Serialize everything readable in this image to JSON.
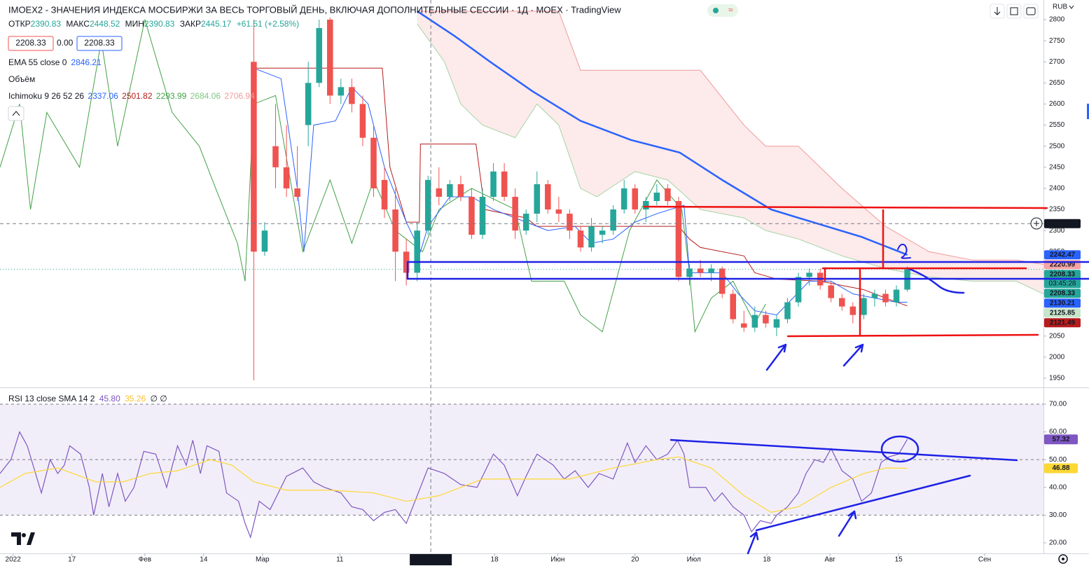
{
  "currency": "RUB",
  "legend": {
    "title": "IMOEX2 - ЗНАЧЕНИЯ ИНДЕКСА МОСБИРЖИ ЗА ВЕСЬ ТОРГОВЫЙ ДЕНЬ, ВКЛЮЧАЯ ДОПОЛНИТЕЛЬНЫЕ СЕССИИ · 1Д · MOEX · TradingView",
    "ohlc": [
      {
        "name": "ОТКР",
        "value": "2390.83"
      },
      {
        "name": "МАКС",
        "value": "2448.52"
      },
      {
        "name": "МИН",
        "value": "2390.83"
      },
      {
        "name": "ЗАКР",
        "value": "2445.17"
      }
    ],
    "change": "+61.51 (+2.58%)",
    "inputs": [
      "2208.33",
      "0.00",
      "2208.33"
    ],
    "ema": {
      "name": "EMA 55 close 0",
      "value": "2846.21"
    },
    "volume": "Объём",
    "ichimoku": {
      "name": "Ichimoku 9 26 52 26",
      "values": [
        "2337.06",
        "2501.82",
        "2293.99",
        "2684.06",
        "2706.94"
      ]
    },
    "rsi": {
      "name": "RSI 13 close SMA 14 2",
      "values": [
        "45.80",
        "35.26",
        "∅ ∅"
      ]
    }
  },
  "chart_data": [
    {
      "type": "candlestick",
      "up_color": "#26a69a",
      "down_color": "#ef5350",
      "xlim": [
        -23.3,
        72.5
      ],
      "ylim": [
        1930,
        2846.5
      ],
      "yticks": [
        1950,
        2000,
        2050,
        2100,
        2150,
        2200,
        2250,
        2300,
        2350,
        2400,
        2450,
        2500,
        2550,
        2600,
        2650,
        2700,
        2750,
        2800
      ],
      "xticks": [
        {
          "value": -22.1,
          "label": "2022"
        },
        {
          "value": -16.7,
          "label": "17"
        },
        {
          "value": -10,
          "label": "Фев"
        },
        {
          "value": -4.6,
          "label": "14"
        },
        {
          "value": 0.8,
          "label": "Мар"
        },
        {
          "value": 7.9,
          "label": "11"
        },
        {
          "value": 16.25,
          "label": "29 Апр '22"
        },
        {
          "value": 22.1,
          "label": "18"
        },
        {
          "value": 27.9,
          "label": "Июн"
        },
        {
          "value": 35,
          "label": "20"
        },
        {
          "value": 40.4,
          "label": "Июл"
        },
        {
          "value": 47.1,
          "label": "18"
        },
        {
          "value": 52.9,
          "label": "Авг"
        },
        {
          "value": 59.2,
          "label": "15"
        },
        {
          "value": 67.1,
          "label": "Сен"
        }
      ],
      "grid": false,
      "crosshair": {
        "x": 16.25,
        "y": 2316.36
      },
      "ohlc": [
        [
          2700,
          2800,
          1945,
          2250
        ],
        [
          2250,
          2320,
          2240,
          2300
        ],
        [
          2500,
          2600,
          2400,
          2450
        ],
        [
          2450,
          2550,
          2380,
          2400
        ],
        [
          2400,
          2500,
          2370,
          2380
        ],
        [
          2550,
          2700,
          2500,
          2650
        ],
        [
          2650,
          2800,
          2640,
          2780
        ],
        [
          2800,
          2805,
          2600,
          2620
        ],
        [
          2620,
          2660,
          2600,
          2640
        ],
        [
          2640,
          2660,
          2580,
          2600
        ],
        [
          2600,
          2620,
          2500,
          2520
        ],
        [
          2520,
          2550,
          2380,
          2400
        ],
        [
          2420,
          2450,
          2330,
          2350
        ],
        [
          2350,
          2400,
          2180,
          2250
        ],
        [
          2250,
          2280,
          2170,
          2200
        ],
        [
          2200,
          2320,
          2180,
          2300
        ],
        [
          2300,
          2430,
          2290,
          2420
        ],
        [
          2400,
          2450,
          2360,
          2380
        ],
        [
          2380,
          2420,
          2370,
          2410
        ],
        [
          2410,
          2430,
          2370,
          2380
        ],
        [
          2380,
          2400,
          2280,
          2290
        ],
        [
          2290,
          2400,
          2280,
          2380
        ],
        [
          2380,
          2460,
          2370,
          2440
        ],
        [
          2440,
          2460,
          2370,
          2380
        ],
        [
          2380,
          2400,
          2280,
          2300
        ],
        [
          2300,
          2350,
          2290,
          2340
        ],
        [
          2340,
          2440,
          2320,
          2410
        ],
        [
          2410,
          2420,
          2340,
          2350
        ],
        [
          2350,
          2380,
          2320,
          2340
        ],
        [
          2340,
          2350,
          2280,
          2300
        ],
        [
          2300,
          2310,
          2250,
          2260
        ],
        [
          2260,
          2330,
          2250,
          2310
        ],
        [
          2290,
          2310,
          2270,
          2300
        ],
        [
          2300,
          2360,
          2290,
          2350
        ],
        [
          2350,
          2420,
          2340,
          2400
        ],
        [
          2400,
          2410,
          2340,
          2350
        ],
        [
          2350,
          2380,
          2320,
          2370
        ],
        [
          2370,
          2410,
          2360,
          2390
        ],
        [
          2400,
          2410,
          2360,
          2370
        ],
        [
          2370,
          2380,
          2180,
          2190
        ],
        [
          2190,
          2220,
          2170,
          2210
        ],
        [
          2210,
          2230,
          2190,
          2200
        ],
        [
          2200,
          2220,
          2180,
          2210
        ],
        [
          2210,
          2215,
          2140,
          2150
        ],
        [
          2150,
          2160,
          2080,
          2090
        ],
        [
          2080,
          2110,
          2060,
          2070
        ],
        [
          2070,
          2120,
          2060,
          2100
        ],
        [
          2100,
          2110,
          2070,
          2080
        ],
        [
          2070,
          2100,
          2050,
          2090
        ],
        [
          2090,
          2140,
          2080,
          2130
        ],
        [
          2130,
          2200,
          2120,
          2190
        ],
        [
          2190,
          2210,
          2170,
          2200
        ],
        [
          2200,
          2210,
          2160,
          2170
        ],
        [
          2170,
          2180,
          2130,
          2140
        ],
        [
          2140,
          2150,
          2110,
          2120
        ],
        [
          2120,
          2130,
          2080,
          2100
        ],
        [
          2100,
          2150,
          2090,
          2140
        ],
        [
          2140,
          2160,
          2120,
          2150
        ],
        [
          2150,
          2160,
          2120,
          2130
        ],
        [
          2130,
          2170,
          2120,
          2160
        ],
        [
          2160,
          2215,
          2155,
          2208.33
        ]
      ],
      "ema": {
        "color": "#2962ff",
        "x": [
          15,
          18.5,
          21.7,
          25.6,
          30,
          34.6,
          39.1,
          43,
          47.5,
          51.3,
          55.8,
          60
        ],
        "values": [
          2820,
          2760,
          2700,
          2630,
          2560,
          2515,
          2485,
          2420,
          2350,
          2320,
          2285,
          2242.47
        ]
      },
      "tenkan": {
        "color": "#2962ff",
        "x": [
          0,
          2.5,
          4,
          4.6,
          5.5,
          7.5,
          9,
          10.5,
          12,
          14,
          15.3,
          16,
          18,
          20,
          22,
          25,
          27,
          29.5,
          31,
          33,
          35,
          37,
          39.5,
          40,
          43,
          44.5,
          46,
          48,
          49.5,
          51,
          53,
          55,
          57,
          59,
          60
        ],
        "values": [
          2685,
          2660,
          2400,
          2250,
          2550,
          2560,
          2640,
          2600,
          2450,
          2320,
          2250,
          2310,
          2380,
          2380,
          2350,
          2320,
          2300,
          2310,
          2270,
          2280,
          2320,
          2340,
          2360,
          2200,
          2200,
          2150,
          2110,
          2100,
          2140,
          2180,
          2180,
          2150,
          2140,
          2130,
          2130.21
        ]
      },
      "kijun": {
        "color": "#b71c1c",
        "x": [
          0,
          11.8,
          12.5,
          14,
          15.2,
          15.3,
          20.4,
          21.2,
          25,
          26,
          39,
          40,
          41,
          45,
          46,
          48,
          52,
          54,
          56,
          58,
          60
        ],
        "values": [
          2685,
          2685,
          2450,
          2320,
          2320,
          2505,
          2505,
          2350,
          2330,
          2310,
          2310,
          2280,
          2260,
          2240,
          2200,
          2185,
          2180,
          2170,
          2160,
          2140,
          2121.49
        ]
      },
      "lagging": {
        "color": "#43a047",
        "x": [
          -23.3,
          -21.5,
          -20.5,
          -19,
          -16,
          -14,
          -12.5,
          -10,
          -7.5,
          -5,
          -3.5,
          -1.5,
          -0.8,
          0,
          2,
          4.5,
          7,
          9,
          11,
          13,
          15.5,
          17,
          20,
          24,
          25.5,
          28.5,
          30,
          32,
          34.5,
          37,
          39.3,
          40,
          40.5,
          42,
          44,
          46,
          47
        ],
        "values": [
          2450,
          2600,
          2350,
          2580,
          2450,
          2750,
          2500,
          2800,
          2580,
          2500,
          2400,
          2270,
          2180,
          2600,
          2620,
          2250,
          2420,
          2270,
          2420,
          2300,
          2250,
          2350,
          2400,
          2350,
          2180,
          2180,
          2100,
          2060,
          2300,
          2420,
          2350,
          2200,
          2060,
          2140,
          2180,
          2080,
          2125.85
        ]
      },
      "span_a": {
        "color": "#a5d6a7",
        "x": [
          15,
          17.5,
          19,
          21,
          24,
          26,
          28,
          30,
          31.5,
          35,
          38,
          41,
          45,
          47,
          50,
          54,
          58,
          62,
          66,
          70,
          72.5
        ],
        "values": [
          2790,
          2700,
          2600,
          2550,
          2520,
          2600,
          2550,
          2400,
          2380,
          2440,
          2420,
          2350,
          2330,
          2300,
          2280,
          2240,
          2210,
          2190,
          2180,
          2180,
          2150
        ]
      },
      "span_b": {
        "color": "#ef9a9a",
        "x": [
          15,
          17.5,
          19,
          21,
          24,
          26,
          28,
          30,
          31.5,
          35,
          38,
          41,
          45,
          47,
          50,
          54,
          58,
          62,
          66,
          70,
          72.5
        ],
        "values": [
          2820,
          2820,
          2820,
          2820,
          2820,
          2820,
          2820,
          2680,
          2680,
          2680,
          2680,
          2680,
          2550,
          2500,
          2500,
          2400,
          2310,
          2250,
          2230,
          2230,
          2220
        ]
      },
      "price_labels": [
        {
          "value": 2316.36,
          "color": "#131722"
        },
        {
          "value": 2242.47,
          "color": "#2962ff"
        },
        {
          "value": 2220.99,
          "color": "#f7a4a4"
        },
        {
          "value": 2208.33,
          "color": "#26a69a",
          "countdown": "03:45:28"
        },
        {
          "value": 2208.33,
          "color": "#26a69a"
        },
        {
          "value": 2130.21,
          "color": "#2962ff"
        },
        {
          "value": 2125.85,
          "color": "#c8e6c9"
        },
        {
          "value": 2121.49,
          "color": "#b71c1c"
        }
      ]
    },
    {
      "type": "line",
      "xlim": [
        -23.3,
        72.5
      ],
      "ylim": [
        16.2,
        75.3
      ],
      "yticks": [
        {
          "value": 20,
          "label": "20.00"
        },
        {
          "value": 30,
          "label": "30.00"
        },
        {
          "value": 40,
          "label": "40.00"
        },
        {
          "value": 50,
          "label": "50.00"
        },
        {
          "value": 60,
          "label": "60.00"
        },
        {
          "value": 70,
          "label": "70.00"
        }
      ],
      "band": [
        30,
        70
      ],
      "levels": [
        70,
        50,
        30
      ],
      "series": [
        {
          "color": "#7e57c2",
          "x": [
            -23.3,
            -22.3,
            -21.5,
            -20.8,
            -19.5,
            -18.7,
            -18,
            -17.4,
            -16.9,
            -15.9,
            -15.1,
            -14.7,
            -13.9,
            -13.3,
            -12.5,
            -11.8,
            -11,
            -10.1,
            -9,
            -8,
            -7,
            -6.2,
            -5.6,
            -4.9,
            -4.3,
            -3.2,
            -2.5,
            -1.4,
            -0.8,
            -0.3,
            0.5,
            1.5,
            3,
            4.5,
            5.5,
            6.5,
            8,
            9,
            10,
            11,
            12,
            13,
            14,
            15.3,
            16,
            17.5,
            19,
            20.5,
            22,
            23,
            24.2,
            25,
            26,
            27.5,
            28.5,
            29.5,
            30.7,
            31.7,
            33,
            34.3,
            35,
            36,
            37,
            38,
            38.9,
            39.5,
            40,
            41.5,
            42.3,
            43,
            44,
            45,
            45.7,
            46.5,
            47.5,
            48,
            49,
            50,
            50.7,
            51.5,
            52.3,
            53,
            54,
            55,
            55.8,
            56.7,
            57.6,
            58.3,
            59.2,
            60
          ],
          "values": [
            45,
            50,
            60,
            55,
            38,
            50,
            45,
            48,
            55,
            52,
            40,
            30,
            45,
            33,
            45,
            35,
            40,
            53,
            52,
            40,
            55,
            48,
            57,
            45,
            55,
            53,
            38,
            35,
            27,
            22,
            35,
            32,
            44,
            47,
            42,
            40,
            38,
            33,
            32,
            28,
            31,
            32,
            27,
            40,
            47,
            45,
            41,
            40,
            52,
            48,
            37,
            44,
            52,
            48,
            43,
            46,
            40,
            45,
            43,
            56,
            49,
            55,
            50,
            52,
            57,
            52,
            40,
            40,
            35,
            38,
            33,
            30,
            24,
            28,
            27,
            30,
            33,
            38,
            45,
            50,
            49,
            54,
            46,
            43,
            35,
            38,
            49,
            51,
            52,
            57.32
          ]
        },
        {
          "color": "#fdd835",
          "x": [
            -23.3,
            -21,
            -18,
            -14.5,
            -12,
            -9.5,
            -7,
            -4,
            -2,
            0,
            3,
            7,
            11,
            14,
            17,
            21,
            25,
            29,
            33,
            37,
            39,
            42,
            45,
            47.5,
            50,
            53,
            56,
            58,
            60
          ],
          "values": [
            40,
            45,
            47,
            42,
            42,
            45,
            46,
            50,
            48,
            42,
            39,
            39,
            38,
            35,
            37,
            43,
            43,
            43,
            47,
            50,
            51,
            47,
            37,
            31,
            33,
            40,
            45,
            47,
            46.88
          ]
        }
      ]
    }
  ]
}
